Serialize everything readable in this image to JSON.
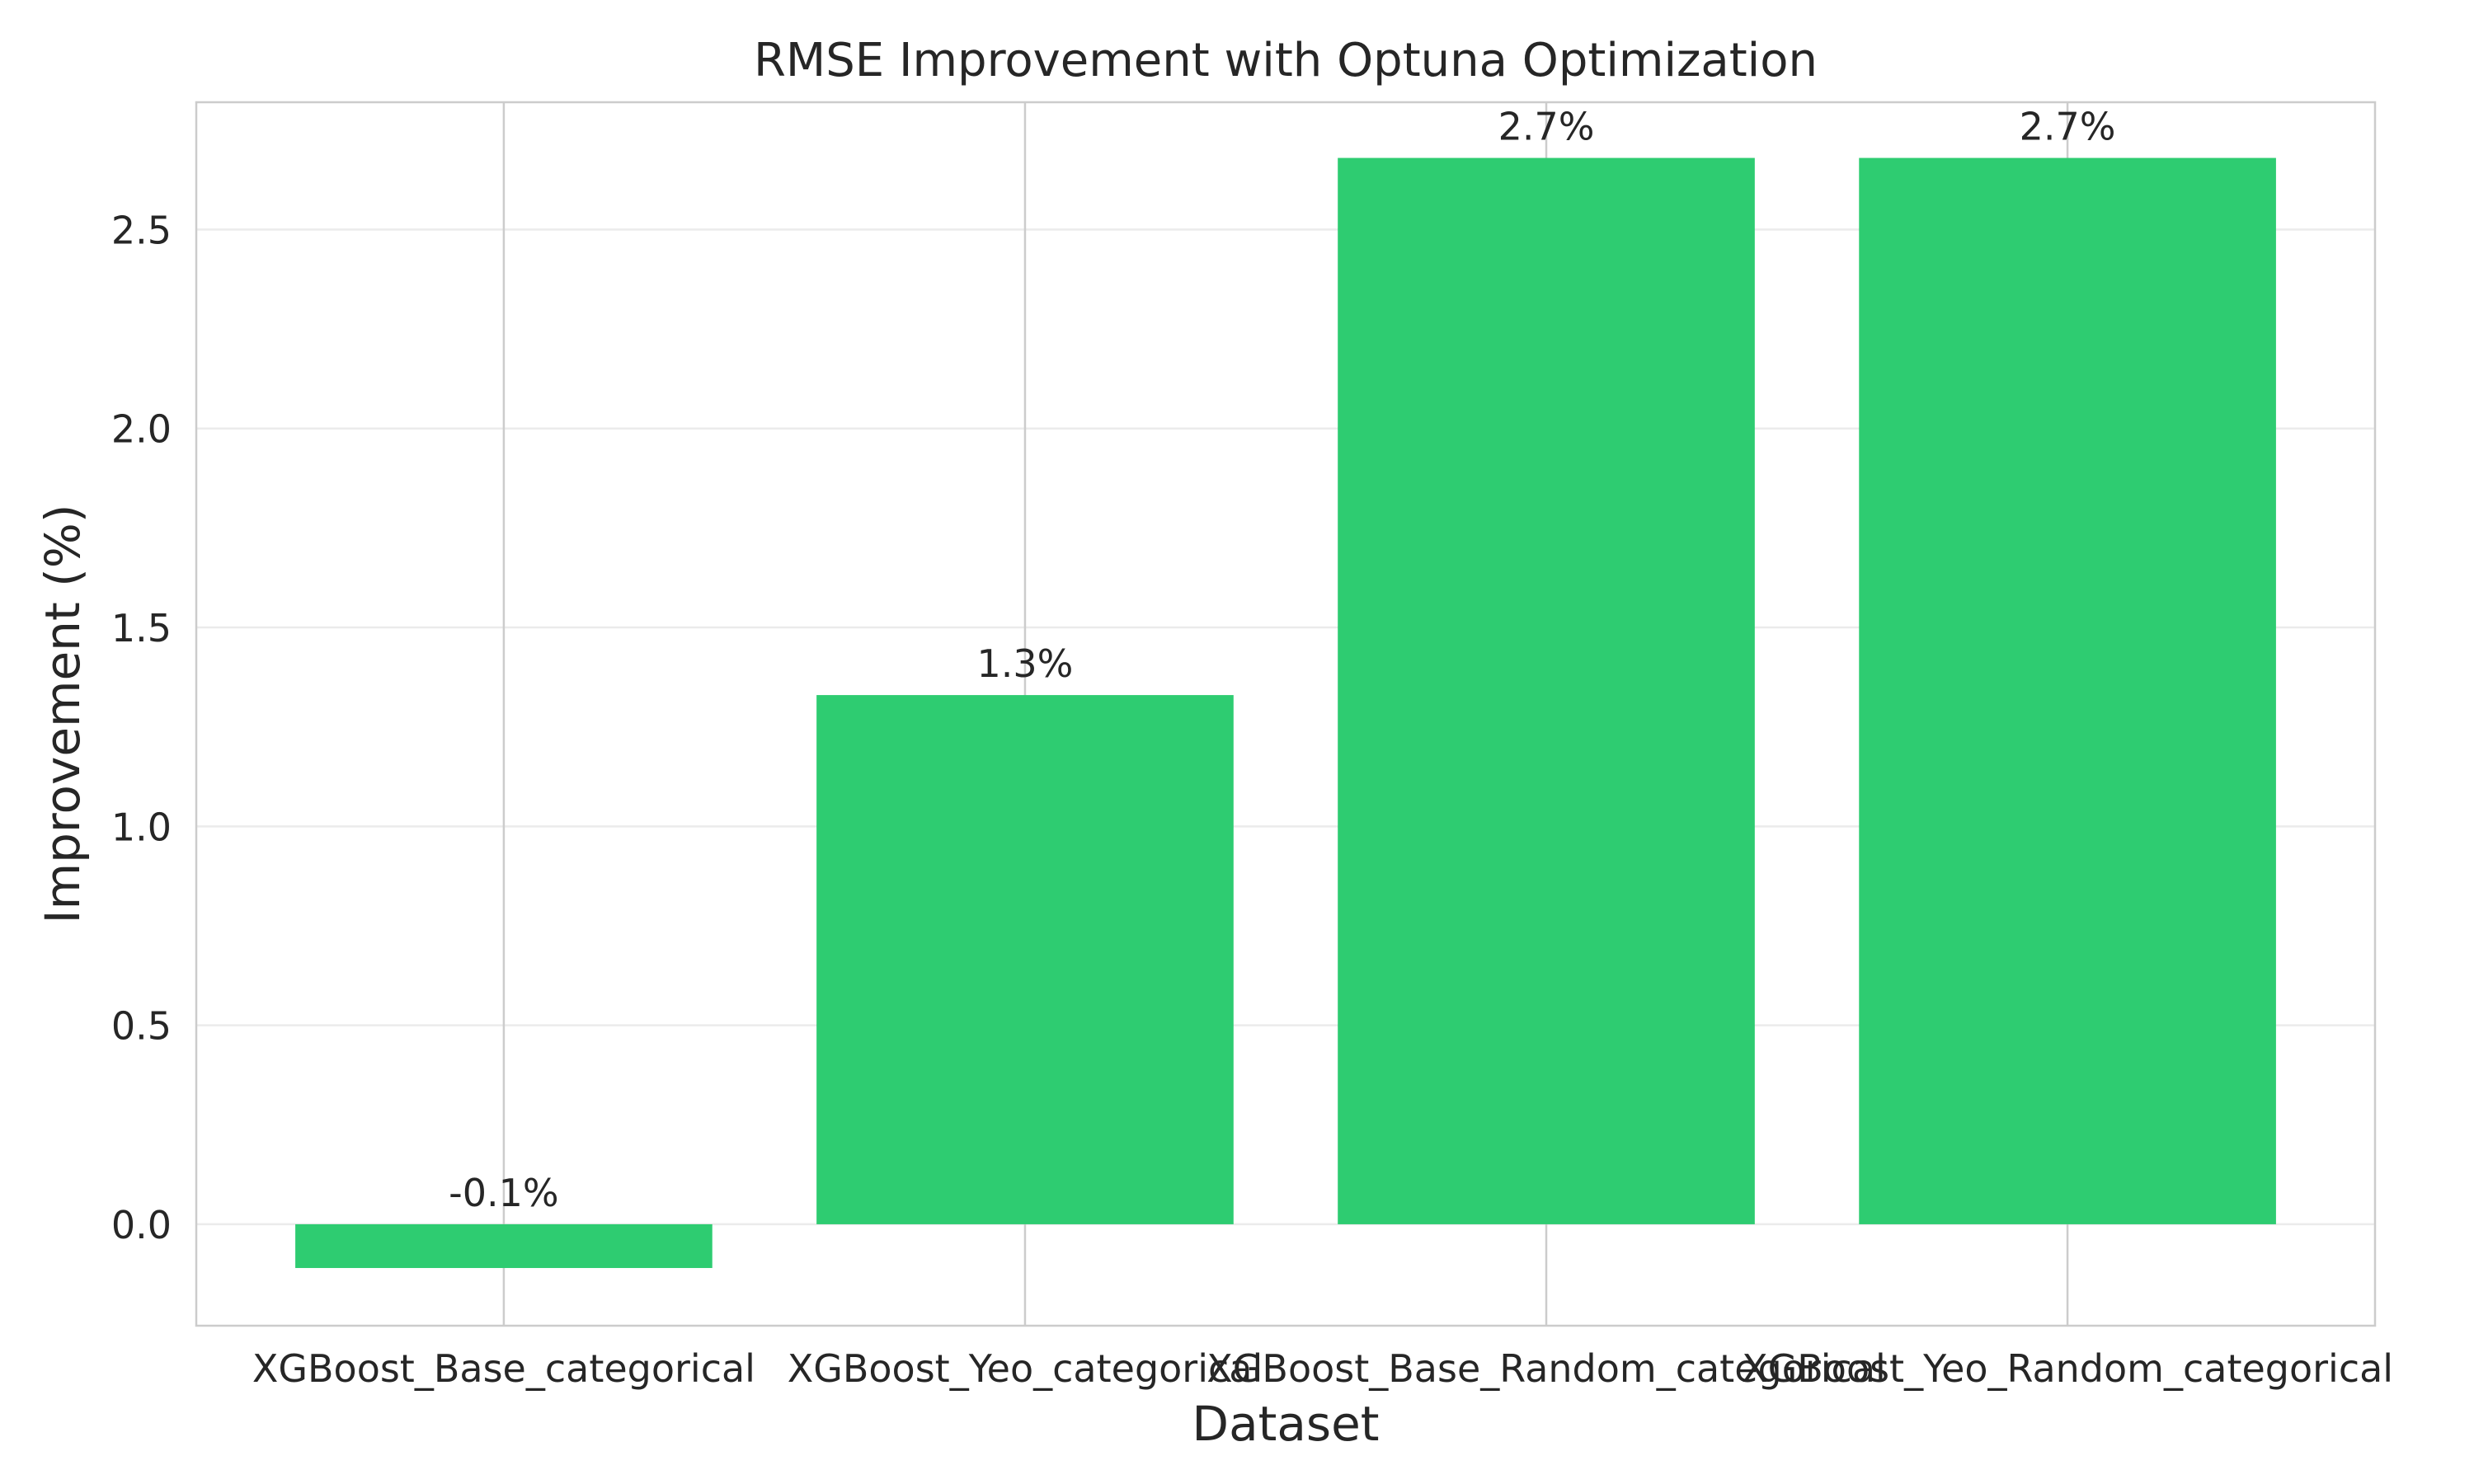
{
  "chart_data": {
    "type": "bar",
    "title": "RMSE Improvement with Optuna Optimization",
    "xlabel": "Dataset",
    "ylabel": "Improvement (%)",
    "categories": [
      "XGBoost_Base_categorical",
      "XGBoost_Yeo_categorical",
      "XGBoost_Base_Random_categorical",
      "XGBoost_Yeo_Random_categorical"
    ],
    "values": [
      -0.11,
      1.33,
      2.68,
      2.68
    ],
    "data_labels": [
      "-0.1%",
      "1.3%",
      "2.7%",
      "2.7%"
    ],
    "yticks": [
      0.0,
      0.5,
      1.0,
      1.5,
      2.0,
      2.5
    ],
    "ytick_labels": [
      "0.0",
      "0.5",
      "1.0",
      "1.5",
      "2.0",
      "2.5"
    ],
    "ylim": [
      -0.255,
      2.82
    ],
    "grid": true,
    "bar_color": "#2ecc71"
  }
}
